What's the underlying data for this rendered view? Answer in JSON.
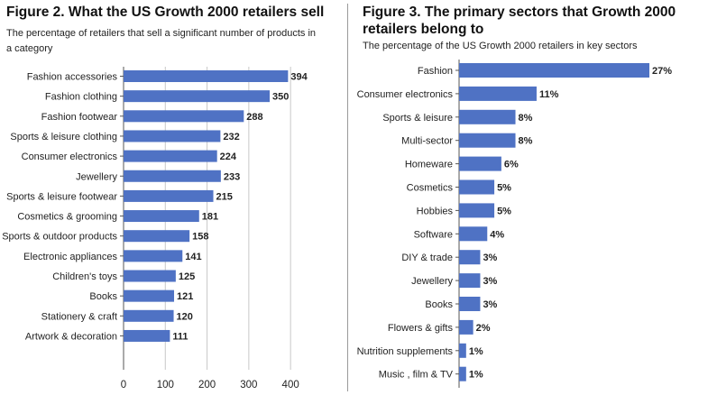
{
  "colors": {
    "bar": "#4f72c4",
    "grid": "#c8c8c8",
    "axis": "#555555",
    "text": "#222222"
  },
  "fig2": {
    "title": "Figure 2. What the US Growth 2000 retailers sell",
    "subtitle": "The percentage of retailers that sell a significant number of products in a category"
  },
  "fig3": {
    "title": "Figure 3. The primary sectors that Growth 2000 retailers belong to",
    "subtitle": "The percentage of the US Growth 2000 retailers in key sectors"
  },
  "chart_data": [
    {
      "type": "bar",
      "orientation": "horizontal",
      "title": "Figure 2. What the US Growth 2000 retailers sell",
      "subtitle": "The percentage of retailers that sell a significant number of products in a category",
      "categories": [
        "Fashion accessories",
        "Fashion clothing",
        "Fashion footwear",
        "Sports & leisure clothing",
        "Consumer electronics",
        "Jewellery",
        "Sports & leisure footwear",
        "Cosmetics & grooming",
        "Sports & outdoor products",
        "Electronic appliances",
        "Children's toys",
        "Books",
        "Stationery & craft",
        "Artwork & decoration"
      ],
      "values": [
        394,
        350,
        288,
        232,
        224,
        233,
        215,
        181,
        158,
        141,
        125,
        121,
        120,
        111
      ],
      "value_labels": [
        "394",
        "350",
        "288",
        "232",
        "224",
        "233",
        "215",
        "181",
        "158",
        "141",
        "125",
        "121",
        "120",
        "111"
      ],
      "xlim": [
        0,
        450
      ],
      "xticks": [
        0,
        100,
        200,
        300,
        400
      ],
      "xtick_labels": [
        "0",
        "100",
        "200",
        "300",
        "400"
      ],
      "grid": "vertical"
    },
    {
      "type": "bar",
      "orientation": "horizontal",
      "title": "Figure 3. The primary sectors that Growth 2000 retailers belong to",
      "subtitle": "The percentage of the US Growth 2000 retailers in key sectors",
      "categories": [
        "Fashion",
        "Consumer electronics",
        "Sports & leisure",
        "Multi-sector",
        "Homeware",
        "Cosmetics",
        "Hobbies",
        "Software",
        "DIY & trade",
        "Jewellery",
        "Books",
        "Flowers & gifts",
        "Nutrition supplements",
        "Music , film & TV"
      ],
      "values": [
        27,
        11,
        8,
        8,
        6,
        5,
        5,
        4,
        3,
        3,
        3,
        2,
        1,
        1
      ],
      "value_labels": [
        "27%",
        "11%",
        "8%",
        "8%",
        "6%",
        "5%",
        "5%",
        "4%",
        "3%",
        "3%",
        "3%",
        "2%",
        "1%",
        "1%"
      ],
      "xlim": [
        0,
        27
      ],
      "grid": "none"
    }
  ]
}
